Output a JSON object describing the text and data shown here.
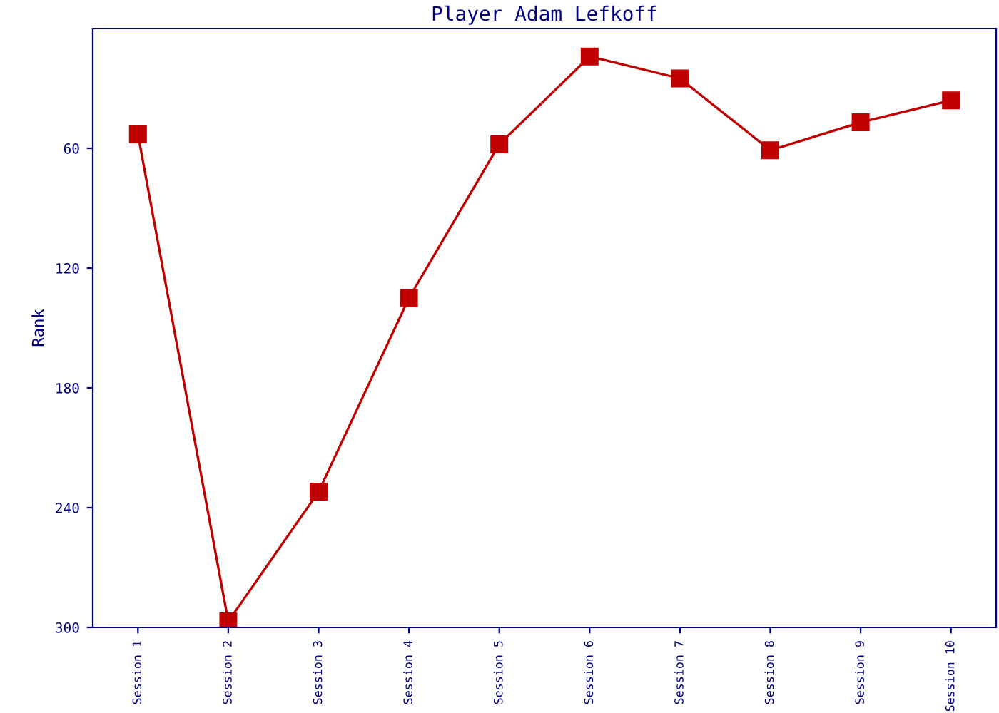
{
  "chart_data": {
    "type": "line",
    "title": "Player Adam Lefkoff",
    "ylabel": "Rank",
    "categories": [
      "Session 1",
      "Session 2",
      "Session 3",
      "Session 4",
      "Session 5",
      "Session 6",
      "Session 7",
      "Session 8",
      "Session 9",
      "Session 10"
    ],
    "series": [
      {
        "color": "#c00000",
        "values": [
          53,
          297,
          232,
          135,
          58,
          14,
          25,
          61,
          47,
          36
        ]
      }
    ],
    "ylim": [
      300,
      0
    ],
    "yticks": [
      60,
      120,
      180,
      240,
      300
    ],
    "marker": "square",
    "grid": false,
    "legend": false
  }
}
